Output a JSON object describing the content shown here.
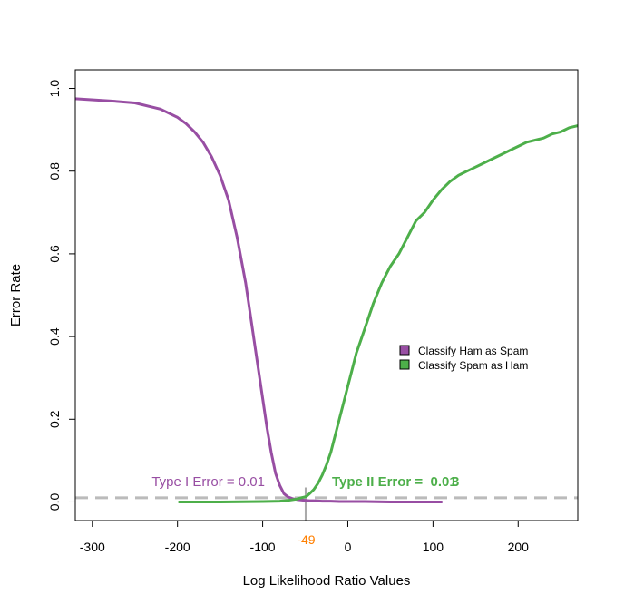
{
  "chart_data": {
    "type": "line",
    "title": "",
    "xlabel": "Log Likelihood Ratio Values",
    "ylabel": "Error Rate",
    "xlim": [
      -320,
      270
    ],
    "ylim": [
      -0.045,
      1.045
    ],
    "xticks": [
      -300,
      -200,
      -100,
      0,
      100,
      200
    ],
    "xtick_labels": [
      "-300",
      "-200",
      "-100",
      "0",
      "100",
      "200"
    ],
    "yticks": [
      0,
      0.2,
      0.4,
      0.6,
      0.8,
      1
    ],
    "ytick_labels": [
      "0.0",
      "0.2",
      "0.4",
      "0.6",
      "0.8",
      "1.0"
    ],
    "grid": false,
    "legend_position": "right-center",
    "series": [
      {
        "name": "Classify Ham as Spam",
        "color": "#984ea3",
        "x": [
          -320,
          -280,
          -250,
          -220,
          -200,
          -190,
          -180,
          -170,
          -160,
          -150,
          -140,
          -130,
          -120,
          -110,
          -100,
          -95,
          -90,
          -85,
          -80,
          -75,
          -70,
          -65,
          -60,
          -55,
          -50,
          -45,
          -40,
          -30,
          -20,
          -10,
          0,
          20,
          50,
          80,
          111
        ],
        "y": [
          0.975,
          0.97,
          0.965,
          0.95,
          0.93,
          0.915,
          0.895,
          0.87,
          0.835,
          0.79,
          0.73,
          0.64,
          0.53,
          0.39,
          0.25,
          0.18,
          0.12,
          0.07,
          0.04,
          0.02,
          0.012,
          0.008,
          0.006,
          0.005,
          0.004,
          0.003,
          0.003,
          0.002,
          0.002,
          0.001,
          0.001,
          0.001,
          0.0,
          0.0,
          0.0
        ]
      },
      {
        "name": "Classify Spam as Ham",
        "color": "#4daf4a",
        "x": [
          -199,
          -150,
          -100,
          -80,
          -70,
          -60,
          -55,
          -49,
          -45,
          -40,
          -35,
          -30,
          -25,
          -20,
          -15,
          -10,
          -5,
          0,
          5,
          10,
          15,
          20,
          30,
          40,
          50,
          60,
          70,
          80,
          90,
          100,
          110,
          120,
          130,
          140,
          150,
          160,
          170,
          180,
          190,
          200,
          210,
          220,
          230,
          240,
          250,
          260,
          270
        ],
        "y": [
          0.0,
          0.0,
          0.001,
          0.002,
          0.004,
          0.007,
          0.01,
          0.013,
          0.02,
          0.03,
          0.045,
          0.065,
          0.09,
          0.12,
          0.16,
          0.2,
          0.24,
          0.28,
          0.32,
          0.36,
          0.39,
          0.42,
          0.48,
          0.53,
          0.57,
          0.6,
          0.64,
          0.68,
          0.7,
          0.73,
          0.755,
          0.775,
          0.79,
          0.8,
          0.81,
          0.82,
          0.83,
          0.84,
          0.85,
          0.86,
          0.87,
          0.875,
          0.88,
          0.89,
          0.895,
          0.905,
          0.91
        ]
      }
    ],
    "annotations": {
      "threshold_x": -49,
      "threshold_label": "-49",
      "threshold_color": "#ff7f00",
      "error_level_y": 0.01,
      "dashed_color": "#bbbbbb",
      "vline_color": "#aaaaaa",
      "type1_text": "Type I Error = 0.01",
      "type1_color": "#984ea3",
      "type2_text": "Type II Error =  0.01",
      "type2_overlap": "3",
      "type2_color": "#4daf4a"
    }
  }
}
